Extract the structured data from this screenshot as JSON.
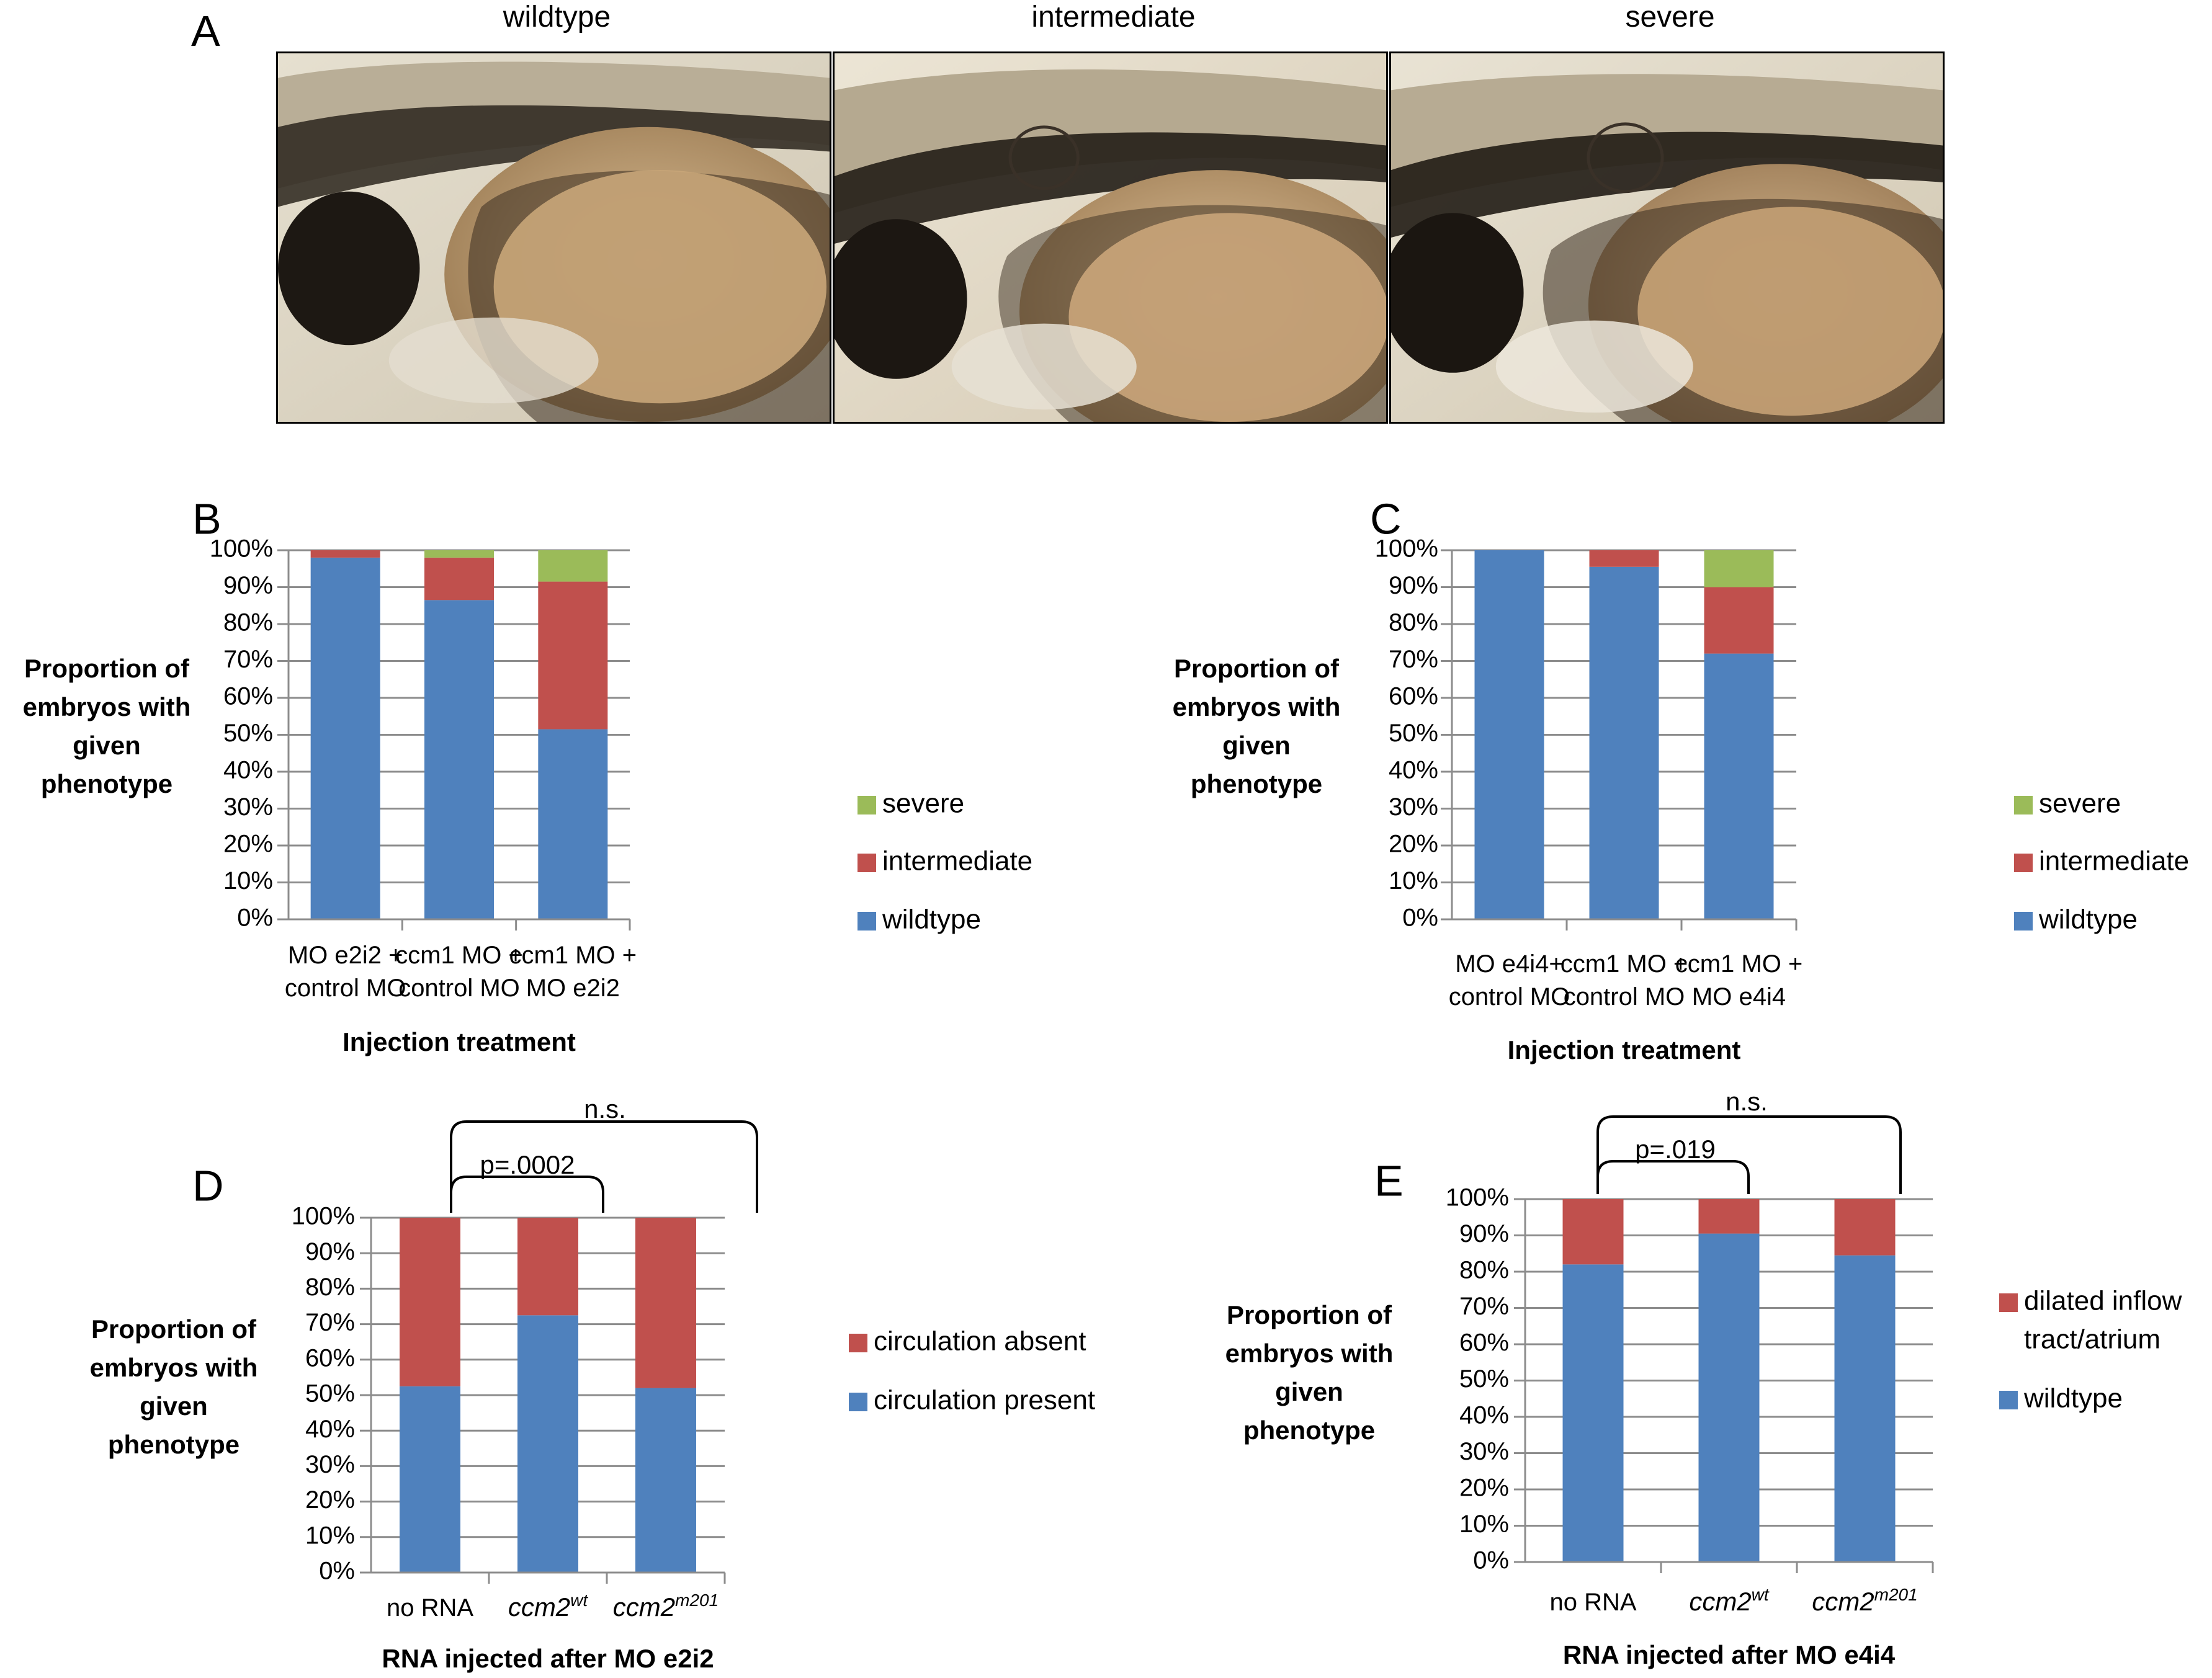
{
  "figure": {
    "panel_labels": [
      "A",
      "B",
      "C",
      "D",
      "E"
    ],
    "photo_titles": [
      "wildtype",
      "intermediate",
      "severe"
    ]
  },
  "colors": {
    "wildtype": "#4f81bd",
    "intermediate": "#c0504d",
    "severe": "#9bbb59",
    "grid": "#8c8c8c"
  },
  "chart_data": [
    {
      "id": "B",
      "type": "bar",
      "stacked": true,
      "categories": [
        [
          "MO e2i2  +",
          "control MO"
        ],
        [
          "ccm1 MO +",
          "control MO"
        ],
        [
          "ccm1 MO +",
          "MO e2i2"
        ]
      ],
      "series": [
        {
          "name": "wildtype",
          "color": "#4f81bd",
          "values": [
            98,
            86.5,
            51.5
          ]
        },
        {
          "name": "intermediate",
          "color": "#c0504d",
          "values": [
            2,
            11.5,
            40
          ]
        },
        {
          "name": "severe",
          "color": "#9bbb59",
          "values": [
            0,
            2,
            8.5
          ]
        }
      ],
      "ylabel": [
        "Proportion of",
        "embryos with",
        "given",
        "phenotype"
      ],
      "xlabel": "Injection treatment",
      "ylim": [
        0,
        100
      ],
      "yticks": [
        "0%",
        "10%",
        "20%",
        "30%",
        "40%",
        "50%",
        "60%",
        "70%",
        "80%",
        "90%",
        "100%"
      ],
      "legend": "right",
      "grid": true
    },
    {
      "id": "C",
      "type": "bar",
      "stacked": true,
      "categories": [
        [
          "MO e4i4+",
          "control MO"
        ],
        [
          "ccm1 MO +",
          "control MO"
        ],
        [
          "ccm1 MO +",
          "MO e4i4"
        ]
      ],
      "series": [
        {
          "name": "wildtype",
          "color": "#4f81bd",
          "values": [
            100,
            95.5,
            72
          ]
        },
        {
          "name": "intermediate",
          "color": "#c0504d",
          "values": [
            0,
            4.5,
            18
          ]
        },
        {
          "name": "severe",
          "color": "#9bbb59",
          "values": [
            0,
            0,
            10
          ]
        }
      ],
      "ylabel": [
        "Proportion of",
        "embryos with",
        "given",
        "phenotype"
      ],
      "xlabel": "Injection treatment",
      "ylim": [
        0,
        100
      ],
      "yticks": [
        "0%",
        "10%",
        "20%",
        "30%",
        "40%",
        "50%",
        "60%",
        "70%",
        "80%",
        "90%",
        "100%"
      ],
      "legend": "right",
      "grid": true
    },
    {
      "id": "D",
      "type": "bar",
      "stacked": true,
      "categories": [
        [
          "no RNA"
        ],
        [
          "ccm2",
          "wt"
        ],
        [
          "ccm2",
          "m201"
        ]
      ],
      "series": [
        {
          "name": "circulation present",
          "color": "#4f81bd",
          "values": [
            52.5,
            72.5,
            52
          ]
        },
        {
          "name": "circulation absent",
          "color": "#c0504d",
          "values": [
            47.5,
            27.5,
            48
          ]
        }
      ],
      "ylabel": [
        "Proportion of",
        "embryos with",
        "given",
        "phenotype"
      ],
      "xlabel": "RNA injected after MO e2i2",
      "ylim": [
        0,
        100
      ],
      "yticks": [
        "0%",
        "10%",
        "20%",
        "30%",
        "40%",
        "50%",
        "60%",
        "70%",
        "80%",
        "90%",
        "100%"
      ],
      "legend": "right",
      "grid": true,
      "annotations": [
        "p=.0002",
        "n.s."
      ]
    },
    {
      "id": "E",
      "type": "bar",
      "stacked": true,
      "categories": [
        [
          "no RNA"
        ],
        [
          "ccm2",
          "wt"
        ],
        [
          "ccm2",
          "m201"
        ]
      ],
      "series": [
        {
          "name": "wildtype",
          "color": "#4f81bd",
          "values": [
            82,
            90.5,
            84.5
          ]
        },
        {
          "name": "dilated inflow tract/atrium",
          "color": "#c0504d",
          "values": [
            18,
            9.5,
            15.5
          ]
        }
      ],
      "ylabel": [
        "Proportion of",
        "embryos with",
        "given",
        "phenotype"
      ],
      "xlabel": "RNA injected after MO e4i4",
      "ylim": [
        0,
        100
      ],
      "yticks": [
        "0%",
        "10%",
        "20%",
        "30%",
        "40%",
        "50%",
        "60%",
        "70%",
        "80%",
        "90%",
        "100%"
      ],
      "legend": "right",
      "grid": true,
      "annotations": [
        "p=.019",
        "n.s."
      ]
    }
  ]
}
